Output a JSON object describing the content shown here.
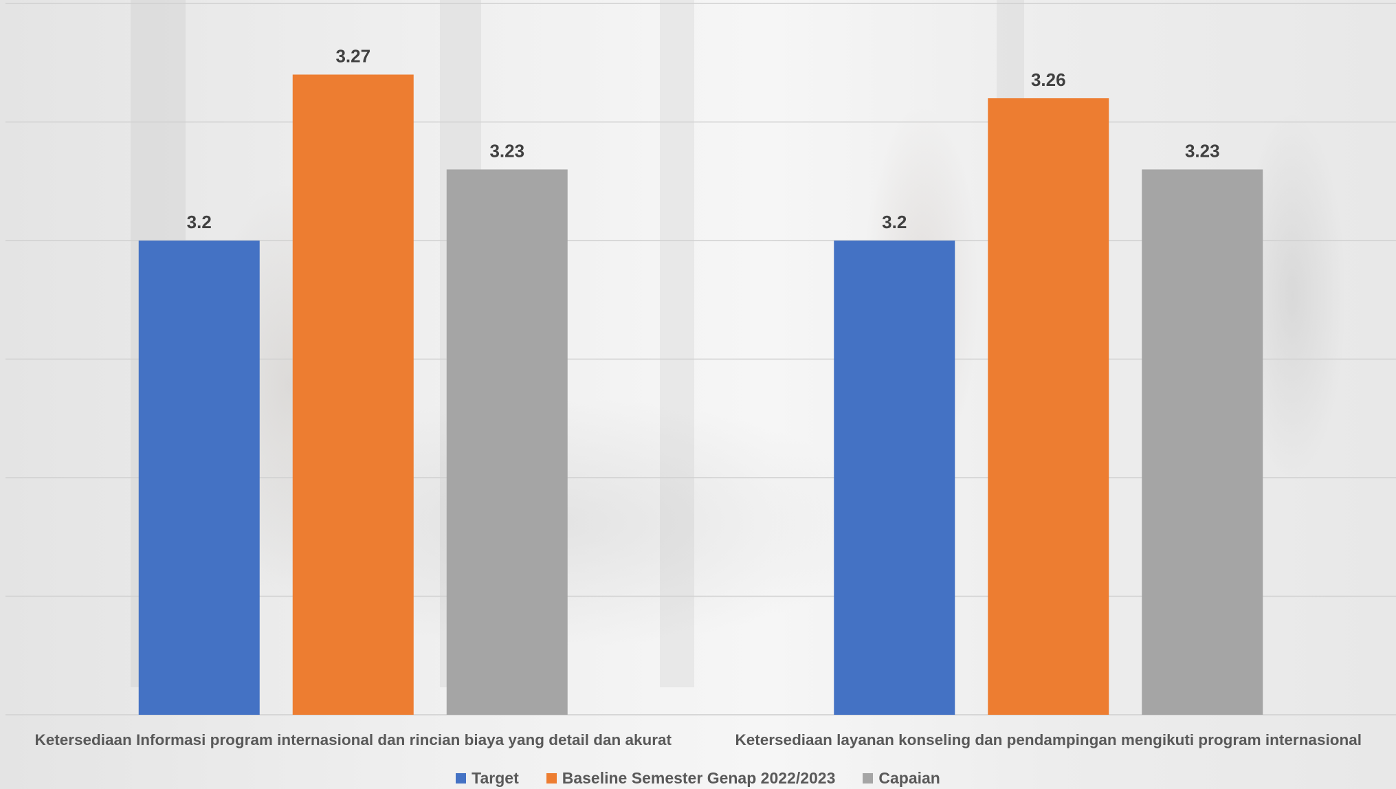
{
  "chart_data": {
    "type": "bar",
    "categories": [
      "Ketersediaan Informasi program internasional dan rincian biaya yang detail dan akurat",
      "Ketersediaan layanan konseling dan pendampingan mengikuti program internasional"
    ],
    "series": [
      {
        "name": "Target",
        "values": [
          3.2,
          3.2
        ],
        "labels": [
          "3.2",
          "3.2"
        ],
        "color": "#4472C4"
      },
      {
        "name": "Baseline Semester Genap 2022/2023",
        "values": [
          3.27,
          3.26
        ],
        "labels": [
          "3.27",
          "3.26"
        ],
        "color": "#ED7D31"
      },
      {
        "name": "Capaian",
        "values": [
          3.23,
          3.23
        ],
        "labels": [
          "3.23",
          "3.23"
        ],
        "color": "#A5A5A5"
      }
    ],
    "ylim": [
      3.0,
      3.3
    ],
    "grid": true,
    "legend": "bottom",
    "title": "",
    "xlabel": "",
    "ylabel": ""
  }
}
